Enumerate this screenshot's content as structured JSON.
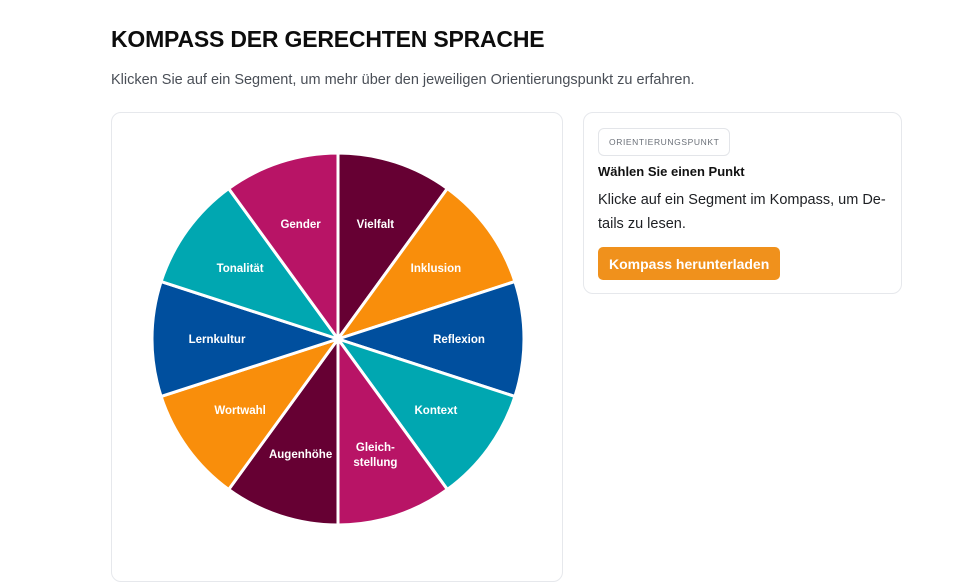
{
  "header": {
    "title": "KOMPASS DER GERECHTEN SPRACHE",
    "subtitle": "Klicken Sie auf ein Segment, um mehr über den jeweiligen Orientierungspunkt zu erfahren."
  },
  "compass": {
    "segments": [
      {
        "label": "Vielfalt",
        "color": "#660033"
      },
      {
        "label": "Inklusion",
        "color": "#f98e0b"
      },
      {
        "label": "Reflexion",
        "color": "#004f9e"
      },
      {
        "label": "Kontext",
        "color": "#00a7b1"
      },
      {
        "label": "Gleich-",
        "label2": "stellung",
        "color": "#b81466"
      },
      {
        "label": "Augenhöhe",
        "color": "#660033"
      },
      {
        "label": "Wortwahl",
        "color": "#f98e0b"
      },
      {
        "label": "Lernkultur",
        "color": "#004f9e"
      },
      {
        "label": "Tonalität",
        "color": "#00a7b1"
      },
      {
        "label": "Gender",
        "color": "#b81466"
      }
    ]
  },
  "info": {
    "badge": "ORIENTIERUNGSPUNKT",
    "title": "Wählen Sie einen Punkt",
    "text": "Klicke auf ein Segment im Kompass, um De-tails zu lesen.",
    "button_label": "Kompass herunterladen",
    "button_color": "#f0911c"
  }
}
